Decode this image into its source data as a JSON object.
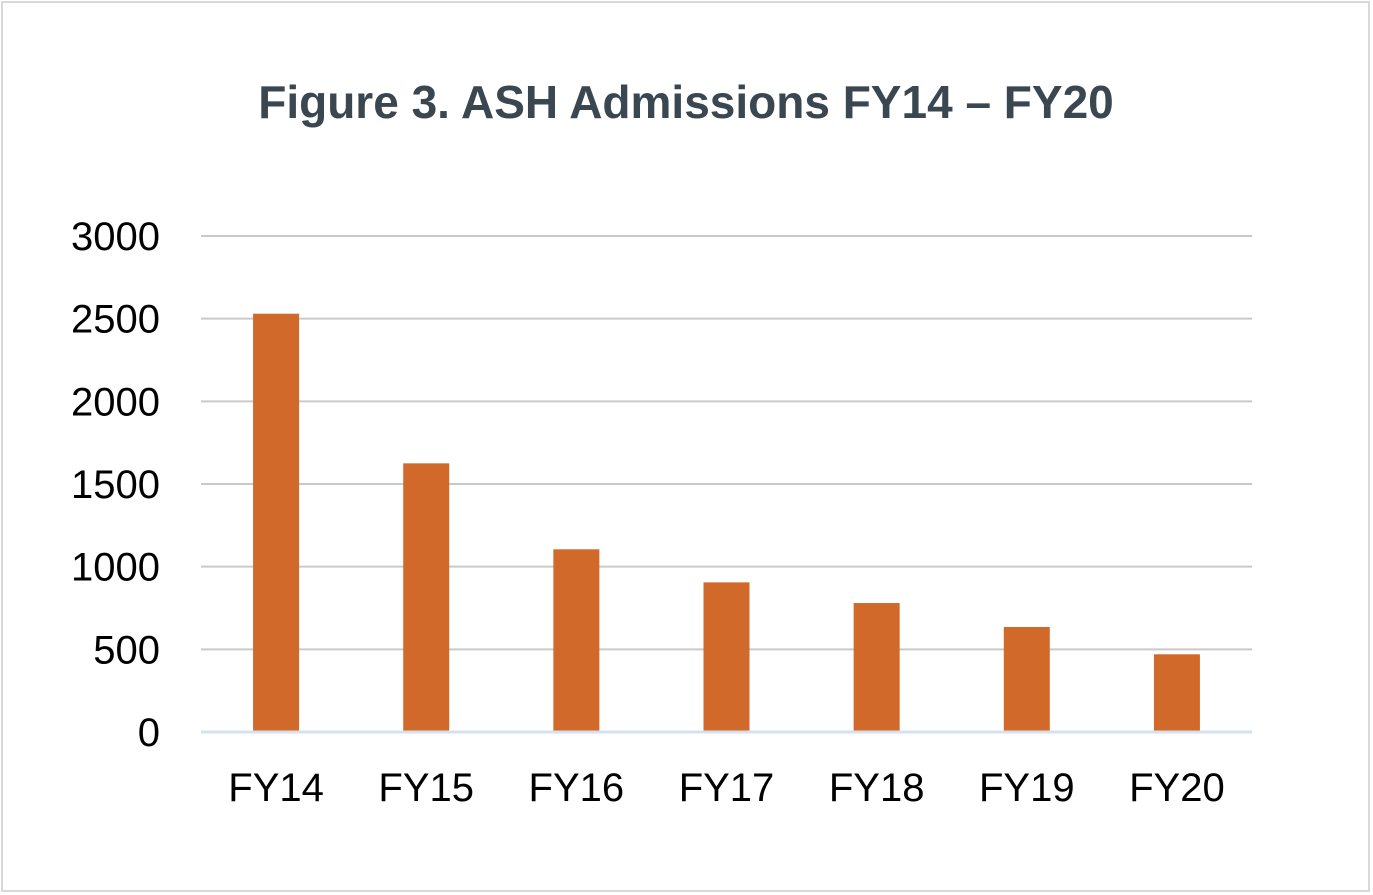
{
  "chart_data": {
    "type": "bar",
    "title": "Figure 3. ASH Admissions FY14 – FY20",
    "xlabel": "",
    "ylabel": "",
    "categories": [
      "FY14",
      "FY15",
      "FY16",
      "FY17",
      "FY18",
      "FY19",
      "FY20"
    ],
    "values": [
      2530,
      1625,
      1105,
      905,
      780,
      635,
      470
    ],
    "ylim": [
      0,
      3000
    ],
    "yticks": [
      "0",
      "500",
      "1000",
      "1500",
      "2000",
      "2500",
      "3000"
    ],
    "ytick_values": [
      0,
      500,
      1000,
      1500,
      2000,
      2500,
      3000
    ],
    "grid": true,
    "legend": "none",
    "colors": {
      "bar": "#d0692a",
      "grid": "#c9c9c9",
      "baseline": "#d6e0f0",
      "title": "#3a4650",
      "border": "#d9d9d9"
    }
  }
}
